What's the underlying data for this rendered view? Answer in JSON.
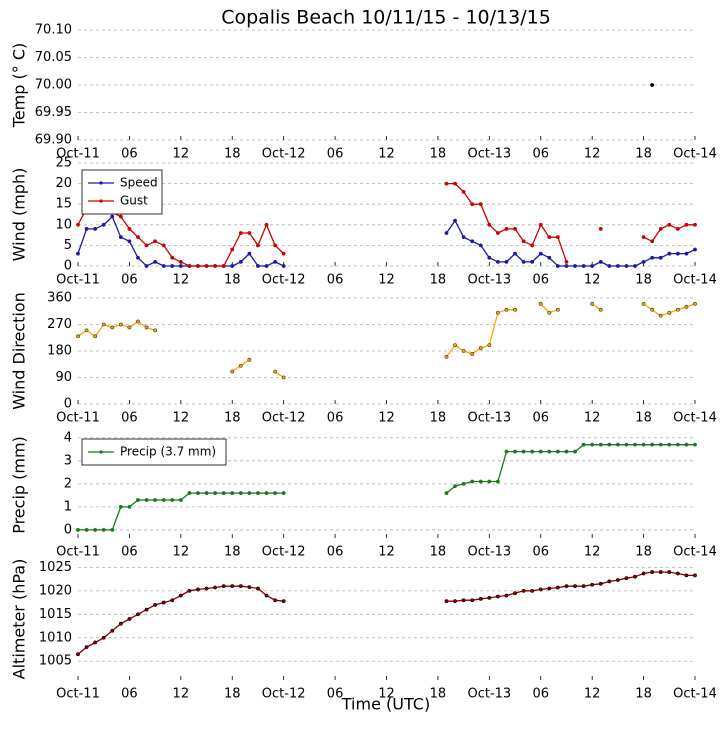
{
  "chart_data": [
    {
      "type": "line",
      "title": "Copalis Beach 10/11/15 - 10/13/15",
      "ylabel": "Temp (° C)",
      "x": [
        67
      ],
      "xlim": [
        0,
        72
      ],
      "xticks": [
        {
          "value": 0,
          "label": "Oct-11"
        },
        {
          "value": 6,
          "label": "06"
        },
        {
          "value": 12,
          "label": "12"
        },
        {
          "value": 18,
          "label": "18"
        },
        {
          "value": 24,
          "label": "Oct-12"
        },
        {
          "value": 30,
          "label": "06"
        },
        {
          "value": 36,
          "label": "12"
        },
        {
          "value": 42,
          "label": "18"
        },
        {
          "value": 48,
          "label": "Oct-13"
        },
        {
          "value": 54,
          "label": "06"
        },
        {
          "value": 60,
          "label": "12"
        },
        {
          "value": 66,
          "label": "18"
        },
        {
          "value": 72,
          "label": "Oct-14"
        }
      ],
      "ylim": [
        69.9,
        70.1
      ],
      "yticks": [
        {
          "value": 69.9,
          "label": "69.90"
        },
        {
          "value": 69.95,
          "label": "69.95"
        },
        {
          "value": 70,
          "label": "70.00"
        },
        {
          "value": 70.05,
          "label": "70.05"
        },
        {
          "value": 70.1,
          "label": "70.10"
        }
      ],
      "grid": true,
      "series": [
        {
          "color": "#000000",
          "values": [
            70
          ]
        }
      ]
    },
    {
      "type": "line",
      "ylabel": "Wind (mph)",
      "x": [
        0,
        1,
        2,
        3,
        4,
        5,
        6,
        7,
        8,
        9,
        10,
        11,
        12,
        13,
        14,
        15,
        16,
        17,
        18,
        19,
        20,
        21,
        22,
        23,
        24,
        25,
        26,
        27,
        28,
        29,
        30,
        31,
        32,
        33,
        34,
        35,
        36,
        37,
        38,
        39,
        40,
        41,
        42,
        43,
        44,
        45,
        46,
        47,
        48,
        49,
        50,
        51,
        52,
        53,
        54,
        55,
        56,
        57,
        58,
        59,
        60,
        61,
        62,
        63,
        64,
        65,
        66,
        67,
        68,
        69,
        70,
        71,
        72
      ],
      "xlim": [
        0,
        72
      ],
      "xticks": [
        {
          "value": 0,
          "label": "Oct-11"
        },
        {
          "value": 6,
          "label": "06"
        },
        {
          "value": 12,
          "label": "12"
        },
        {
          "value": 18,
          "label": "18"
        },
        {
          "value": 24,
          "label": "Oct-12"
        },
        {
          "value": 30,
          "label": "06"
        },
        {
          "value": 36,
          "label": "12"
        },
        {
          "value": 42,
          "label": "18"
        },
        {
          "value": 48,
          "label": "Oct-13"
        },
        {
          "value": 54,
          "label": "06"
        },
        {
          "value": 60,
          "label": "12"
        },
        {
          "value": 66,
          "label": "18"
        },
        {
          "value": 72,
          "label": "Oct-14"
        }
      ],
      "ylim": [
        0,
        25
      ],
      "yticks": [
        0,
        5,
        10,
        15,
        20,
        25
      ],
      "grid": true,
      "legend": "upper left",
      "series": [
        {
          "name": "Speed",
          "color": "#1a1aa6",
          "values": [
            3,
            9,
            9,
            10,
            12,
            7,
            6,
            2,
            0,
            1,
            0,
            0,
            0,
            0,
            0,
            0,
            0,
            0,
            0,
            1,
            3,
            0,
            0,
            1,
            0,
            null,
            null,
            null,
            null,
            null,
            null,
            null,
            null,
            null,
            null,
            null,
            null,
            null,
            null,
            null,
            null,
            null,
            null,
            8,
            11,
            7,
            6,
            5,
            2,
            1,
            1,
            3,
            1,
            1,
            3,
            2,
            0,
            0,
            0,
            0,
            0,
            1,
            0,
            0,
            0,
            0,
            1,
            2,
            2,
            3,
            3,
            3,
            4
          ]
        },
        {
          "name": "Gust",
          "color": "#cc0000",
          "values": [
            10,
            14,
            13,
            13,
            13,
            12,
            9,
            7,
            5,
            6,
            5,
            2,
            1,
            0,
            0,
            0,
            0,
            0,
            4,
            8,
            8,
            5,
            10,
            5,
            3,
            null,
            null,
            null,
            null,
            null,
            null,
            null,
            null,
            null,
            null,
            null,
            null,
            null,
            null,
            null,
            null,
            null,
            null,
            20,
            20,
            18,
            15,
            15,
            10,
            8,
            9,
            9,
            6,
            5,
            10,
            7,
            7,
            1,
            null,
            null,
            null,
            9,
            null,
            null,
            null,
            null,
            7,
            6,
            9,
            10,
            9,
            10,
            10
          ]
        }
      ]
    },
    {
      "type": "line",
      "ylabel": "Wind Direction",
      "x": [
        0,
        1,
        2,
        3,
        4,
        5,
        6,
        7,
        8,
        9,
        10,
        11,
        12,
        13,
        14,
        15,
        16,
        17,
        18,
        19,
        20,
        21,
        22,
        23,
        24,
        25,
        26,
        27,
        28,
        29,
        30,
        31,
        32,
        33,
        34,
        35,
        36,
        37,
        38,
        39,
        40,
        41,
        42,
        43,
        44,
        45,
        46,
        47,
        48,
        49,
        50,
        51,
        52,
        53,
        54,
        55,
        56,
        57,
        58,
        59,
        60,
        61,
        62,
        63,
        64,
        65,
        66,
        67,
        68,
        69,
        70,
        71,
        72
      ],
      "xlim": [
        0,
        72
      ],
      "xticks": [
        {
          "value": 0,
          "label": "Oct-11"
        },
        {
          "value": 6,
          "label": "06"
        },
        {
          "value": 12,
          "label": "12"
        },
        {
          "value": 18,
          "label": "18"
        },
        {
          "value": 24,
          "label": "Oct-12"
        },
        {
          "value": 30,
          "label": "06"
        },
        {
          "value": 36,
          "label": "12"
        },
        {
          "value": 42,
          "label": "18"
        },
        {
          "value": 48,
          "label": "Oct-13"
        },
        {
          "value": 54,
          "label": "06"
        },
        {
          "value": 60,
          "label": "12"
        },
        {
          "value": 66,
          "label": "18"
        },
        {
          "value": 72,
          "label": "Oct-14"
        }
      ],
      "ylim": [
        0,
        360
      ],
      "yticks": [
        0,
        90,
        180,
        270,
        360
      ],
      "grid": true,
      "series": [
        {
          "color": "#ffa500",
          "values": [
            230,
            250,
            230,
            270,
            260,
            270,
            260,
            280,
            260,
            250,
            null,
            null,
            null,
            null,
            null,
            null,
            null,
            null,
            110,
            130,
            150,
            null,
            null,
            110,
            90,
            null,
            null,
            null,
            null,
            null,
            null,
            null,
            null,
            null,
            null,
            null,
            null,
            null,
            null,
            null,
            null,
            null,
            null,
            160,
            200,
            180,
            170,
            190,
            200,
            310,
            320,
            320,
            null,
            null,
            340,
            310,
            320,
            null,
            null,
            null,
            340,
            320,
            null,
            null,
            null,
            null,
            340,
            320,
            300,
            310,
            320,
            330,
            340
          ]
        }
      ]
    },
    {
      "type": "line",
      "ylabel": "Precip (mm)",
      "x": [
        0,
        1,
        2,
        3,
        4,
        5,
        6,
        7,
        8,
        9,
        10,
        11,
        12,
        13,
        14,
        15,
        16,
        17,
        18,
        19,
        20,
        21,
        22,
        23,
        24,
        25,
        26,
        27,
        28,
        29,
        30,
        31,
        32,
        33,
        34,
        35,
        36,
        37,
        38,
        39,
        40,
        41,
        42,
        43,
        44,
        45,
        46,
        47,
        48,
        49,
        50,
        51,
        52,
        53,
        54,
        55,
        56,
        57,
        58,
        59,
        60,
        61,
        62,
        63,
        64,
        65,
        66,
        67,
        68,
        69,
        70,
        71,
        72
      ],
      "xlim": [
        0,
        72
      ],
      "xticks": [
        {
          "value": 0,
          "label": "Oct-11"
        },
        {
          "value": 6,
          "label": "06"
        },
        {
          "value": 12,
          "label": "12"
        },
        {
          "value": 18,
          "label": "18"
        },
        {
          "value": 24,
          "label": "Oct-12"
        },
        {
          "value": 30,
          "label": "06"
        },
        {
          "value": 36,
          "label": "12"
        },
        {
          "value": 42,
          "label": "18"
        },
        {
          "value": 48,
          "label": "Oct-13"
        },
        {
          "value": 54,
          "label": "06"
        },
        {
          "value": 60,
          "label": "12"
        },
        {
          "value": 66,
          "label": "18"
        },
        {
          "value": 72,
          "label": "Oct-14"
        }
      ],
      "ylim": [
        -0.35,
        4.25
      ],
      "yticks": [
        0,
        1,
        2,
        3,
        4
      ],
      "grid": true,
      "legend": "upper left",
      "series": [
        {
          "name": "Precip (3.7 mm)",
          "color": "#1a7a1a",
          "values": [
            0,
            0,
            0,
            0,
            0,
            1,
            1,
            1.3,
            1.3,
            1.3,
            1.3,
            1.3,
            1.3,
            1.6,
            1.6,
            1.6,
            1.6,
            1.6,
            1.6,
            1.6,
            1.6,
            1.6,
            1.6,
            1.6,
            1.6,
            null,
            null,
            null,
            null,
            null,
            null,
            null,
            null,
            null,
            null,
            null,
            null,
            null,
            null,
            null,
            null,
            null,
            null,
            1.6,
            1.9,
            2,
            2.1,
            2.1,
            2.1,
            2.1,
            3.4,
            3.4,
            3.4,
            3.4,
            3.4,
            3.4,
            3.4,
            3.4,
            3.4,
            3.7,
            3.7,
            3.7,
            3.7,
            3.7,
            3.7,
            3.7,
            3.7,
            3.7,
            3.7,
            3.7,
            3.7,
            3.7,
            3.7
          ]
        }
      ]
    },
    {
      "type": "line",
      "ylabel": "Altimeter (hPa)",
      "xlabel": "Time (UTC)",
      "x": [
        0,
        1,
        2,
        3,
        4,
        5,
        6,
        7,
        8,
        9,
        10,
        11,
        12,
        13,
        14,
        15,
        16,
        17,
        18,
        19,
        20,
        21,
        22,
        23,
        24,
        25,
        26,
        27,
        28,
        29,
        30,
        31,
        32,
        33,
        34,
        35,
        36,
        37,
        38,
        39,
        40,
        41,
        42,
        43,
        44,
        45,
        46,
        47,
        48,
        49,
        50,
        51,
        52,
        53,
        54,
        55,
        56,
        57,
        58,
        59,
        60,
        61,
        62,
        63,
        64,
        65,
        66,
        67,
        68,
        69,
        70,
        71,
        72
      ],
      "xlim": [
        0,
        72
      ],
      "xticks": [
        {
          "value": 0,
          "label": "Oct-11"
        },
        {
          "value": 6,
          "label": "06"
        },
        {
          "value": 12,
          "label": "12"
        },
        {
          "value": 18,
          "label": "18"
        },
        {
          "value": 24,
          "label": "Oct-12"
        },
        {
          "value": 30,
          "label": "06"
        },
        {
          "value": 36,
          "label": "12"
        },
        {
          "value": 42,
          "label": "18"
        },
        {
          "value": 48,
          "label": "Oct-13"
        },
        {
          "value": 54,
          "label": "06"
        },
        {
          "value": 60,
          "label": "12"
        },
        {
          "value": 66,
          "label": "18"
        },
        {
          "value": 72,
          "label": "Oct-14"
        }
      ],
      "ylim": [
        1001,
        1027
      ],
      "yticks": [
        1005,
        1010,
        1015,
        1020,
        1025
      ],
      "grid": true,
      "series": [
        {
          "color": "#8b0000",
          "values": [
            1006.5,
            1008,
            1009,
            1010,
            1011.5,
            1013,
            1014,
            1015,
            1016,
            1017,
            1017.5,
            1018,
            1019,
            1020,
            1020.3,
            1020.5,
            1020.7,
            1021,
            1021,
            1021,
            1020.8,
            1020.5,
            1019,
            1018,
            1017.8,
            null,
            null,
            null,
            null,
            null,
            null,
            null,
            null,
            null,
            null,
            null,
            null,
            null,
            null,
            null,
            null,
            null,
            null,
            1017.8,
            1017.8,
            1018,
            1018,
            1018.3,
            1018.5,
            1018.8,
            1019,
            1019.5,
            1020,
            1020,
            1020.3,
            1020.5,
            1020.7,
            1021,
            1021,
            1021,
            1021.3,
            1021.5,
            1022,
            1022.3,
            1022.7,
            1023,
            1023.7,
            1024,
            1024,
            1024,
            1023.7,
            1023.3,
            1023.3
          ]
        }
      ]
    }
  ]
}
